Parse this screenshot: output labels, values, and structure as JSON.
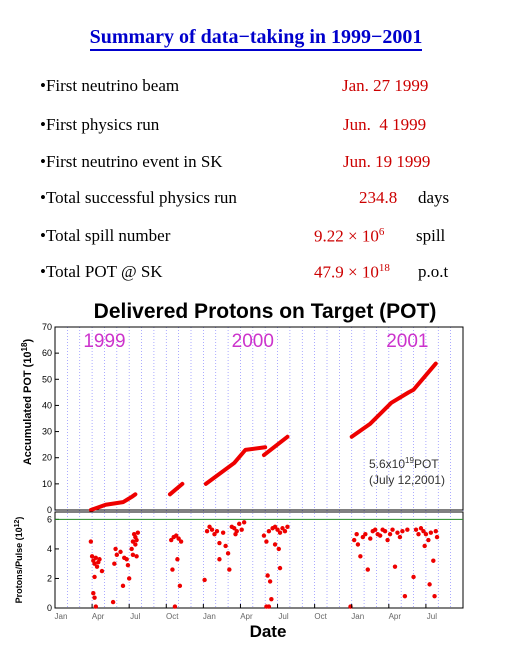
{
  "title": "Summary of data−taking in 1999−2001",
  "summary": [
    {
      "label": "•First neutrino beam",
      "value": "Jan. 27 1999",
      "unit": ""
    },
    {
      "label": "•First physics run",
      "value": "Jun.  4 1999",
      "unit": ""
    },
    {
      "label": "•First neutrino event in SK",
      "value": "Jun. 19 1999",
      "unit": ""
    },
    {
      "label": "•Total successful physics run",
      "value": "234.8",
      "unit": "days"
    },
    {
      "label": "•Total spill number",
      "value_base": "9.22 × 10",
      "value_exp": "6",
      "unit": "spill"
    },
    {
      "label": "•Total POT @ SK",
      "value_base": "47.9 × 10",
      "value_exp": "18",
      "unit": "p.o.t"
    }
  ],
  "chart_data": {
    "type": "scatter",
    "title": "Delivered Protons on Target (POT)",
    "xlabel": "Date",
    "x_ticks": [
      "Jan",
      "Apr",
      "Jul",
      "Oct",
      "Jan",
      "Apr",
      "Jul",
      "Oct",
      "Jan",
      "Apr",
      "Jul"
    ],
    "year_labels": [
      "1999",
      "2000",
      "2001"
    ],
    "annotation_line1": "5.6x10",
    "annotation_sup": "19",
    "annotation_unit": "POT",
    "annotation_line2": "(July 12,2001)",
    "colors": {
      "points": "#ee0000",
      "years": "#cc33cc",
      "limit_line": "#228822",
      "grid": "#8888ff"
    },
    "upper": {
      "ylabel": "Accumulated POT (10",
      "ylabel_sup": "18",
      "ylabel_end": ")",
      "ylim": [
        0,
        70
      ],
      "yticks": [
        0,
        10,
        20,
        30,
        40,
        50,
        60,
        70
      ],
      "segments": [
        {
          "x": [
            2.9,
            3.5,
            4.1,
            5.5,
            6.2,
            6.5
          ],
          "y": [
            0,
            1,
            2,
            3,
            5,
            6
          ]
        },
        {
          "x": [
            9.3,
            10.3
          ],
          "y": [
            6,
            10
          ]
        },
        {
          "x": [
            12.2,
            14.5,
            15.4,
            17.0
          ],
          "y": [
            10,
            18,
            23,
            24
          ]
        },
        {
          "x": [
            16.9,
            18.8
          ],
          "y": [
            21,
            28
          ]
        },
        {
          "x": [
            24.0,
            25.5,
            27.2,
            28.6,
            29.0,
            30.8
          ],
          "y": [
            28,
            33,
            41,
            45,
            46,
            56
          ]
        }
      ]
    },
    "lower": {
      "ylabel": "Protons/Pulse (10",
      "ylabel_sup": "12",
      "ylabel_end": ")",
      "ylim": [
        0,
        6.5
      ],
      "yticks": [
        0,
        2,
        4,
        6
      ],
      "limit": 6,
      "points": [
        [
          2.9,
          4.5
        ],
        [
          3.0,
          3.5
        ],
        [
          3.1,
          3.2
        ],
        [
          3.2,
          3.0
        ],
        [
          3.3,
          3.4
        ],
        [
          3.4,
          2.8
        ],
        [
          3.5,
          3.1
        ],
        [
          3.6,
          3.3
        ],
        [
          3.1,
          1.0
        ],
        [
          3.2,
          0.7
        ],
        [
          3.3,
          0.1
        ],
        [
          3.8,
          2.5
        ],
        [
          3.2,
          2.1
        ],
        [
          4.7,
          0.4
        ],
        [
          4.8,
          3.0
        ],
        [
          4.9,
          4.0
        ],
        [
          5.0,
          3.6
        ],
        [
          5.3,
          3.8
        ],
        [
          5.6,
          3.4
        ],
        [
          5.8,
          3.3
        ],
        [
          5.9,
          2.9
        ],
        [
          6.0,
          2.0
        ],
        [
          6.2,
          4.0
        ],
        [
          6.3,
          4.5
        ],
        [
          6.4,
          5.0
        ],
        [
          6.5,
          4.8
        ],
        [
          6.6,
          4.6
        ],
        [
          6.7,
          5.1
        ],
        [
          6.5,
          4.3
        ],
        [
          6.6,
          3.5
        ],
        [
          6.3,
          3.6
        ],
        [
          5.5,
          1.5
        ],
        [
          9.4,
          4.6
        ],
        [
          9.6,
          4.8
        ],
        [
          9.8,
          4.9
        ],
        [
          10.0,
          4.7
        ],
        [
          10.2,
          4.5
        ],
        [
          9.5,
          2.6
        ],
        [
          9.9,
          3.3
        ],
        [
          10.1,
          1.5
        ],
        [
          9.7,
          0.1
        ],
        [
          12.1,
          1.9
        ],
        [
          12.3,
          5.2
        ],
        [
          12.5,
          5.5
        ],
        [
          12.7,
          5.3
        ],
        [
          12.9,
          5.0
        ],
        [
          13.1,
          5.2
        ],
        [
          13.3,
          4.4
        ],
        [
          13.6,
          5.1
        ],
        [
          13.8,
          4.2
        ],
        [
          14.0,
          3.7
        ],
        [
          14.3,
          5.5
        ],
        [
          14.5,
          5.4
        ],
        [
          14.7,
          5.2
        ],
        [
          14.9,
          5.7
        ],
        [
          15.1,
          5.3
        ],
        [
          15.3,
          5.8
        ],
        [
          13.3,
          3.3
        ],
        [
          14.1,
          2.6
        ],
        [
          14.6,
          5.0
        ],
        [
          16.9,
          4.9
        ],
        [
          17.1,
          4.5
        ],
        [
          17.3,
          5.2
        ],
        [
          17.6,
          5.4
        ],
        [
          17.8,
          5.5
        ],
        [
          18.0,
          5.3
        ],
        [
          18.2,
          5.1
        ],
        [
          18.4,
          5.4
        ],
        [
          18.6,
          5.2
        ],
        [
          18.8,
          5.5
        ],
        [
          17.2,
          2.2
        ],
        [
          17.4,
          1.8
        ],
        [
          17.1,
          0.1
        ],
        [
          17.3,
          0.1
        ],
        [
          17.5,
          0.6
        ],
        [
          17.8,
          4.3
        ],
        [
          18.1,
          4.0
        ],
        [
          18.2,
          2.7
        ],
        [
          23.9,
          0.1
        ],
        [
          24.2,
          4.6
        ],
        [
          24.4,
          5.0
        ],
        [
          24.5,
          4.3
        ],
        [
          24.7,
          3.5
        ],
        [
          24.9,
          4.8
        ],
        [
          25.1,
          5.0
        ],
        [
          25.3,
          2.6
        ],
        [
          25.5,
          4.7
        ],
        [
          25.7,
          5.2
        ],
        [
          25.9,
          5.3
        ],
        [
          26.1,
          5.0
        ],
        [
          26.3,
          4.9
        ],
        [
          26.5,
          5.3
        ],
        [
          26.7,
          5.2
        ],
        [
          26.9,
          4.6
        ],
        [
          27.1,
          5.0
        ],
        [
          27.3,
          5.3
        ],
        [
          27.5,
          2.8
        ],
        [
          27.7,
          5.1
        ],
        [
          27.9,
          4.8
        ],
        [
          28.1,
          5.2
        ],
        [
          28.3,
          0.8
        ],
        [
          28.5,
          5.3
        ],
        [
          29.0,
          2.1
        ],
        [
          29.2,
          5.3
        ],
        [
          29.4,
          5.0
        ],
        [
          29.6,
          5.4
        ],
        [
          29.8,
          5.2
        ],
        [
          30.0,
          5.0
        ],
        [
          30.2,
          4.6
        ],
        [
          30.4,
          5.1
        ],
        [
          30.6,
          3.2
        ],
        [
          30.8,
          5.2
        ],
        [
          30.9,
          4.8
        ],
        [
          30.7,
          0.8
        ],
        [
          30.3,
          1.6
        ],
        [
          29.9,
          4.2
        ]
      ]
    }
  }
}
